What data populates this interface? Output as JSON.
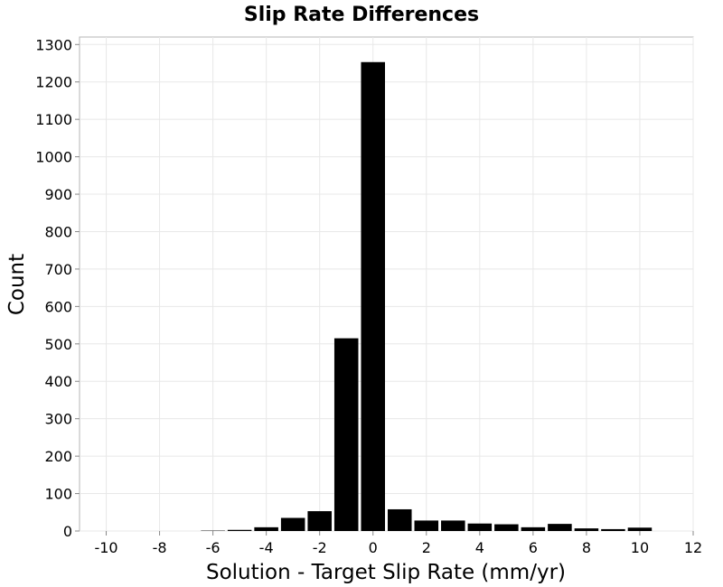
{
  "chart_data": {
    "type": "bar",
    "title": "Slip Rate Differences",
    "xlabel": "Solution - Target Slip Rate (mm/yr)",
    "ylabel": "Count",
    "xlim": [
      -11,
      12
    ],
    "ylim": [
      0,
      1320
    ],
    "xticks": [
      -10,
      -8,
      -6,
      -4,
      -2,
      0,
      2,
      4,
      6,
      8,
      10,
      12
    ],
    "yticks": [
      0,
      100,
      200,
      300,
      400,
      500,
      600,
      700,
      800,
      900,
      1000,
      1100,
      1200,
      1300
    ],
    "bin_width": 1,
    "grid": true,
    "legend": "none",
    "bar_color": "#000000",
    "x": [
      -10,
      -9,
      -8,
      -7,
      -6,
      -5,
      -4,
      -3,
      -2,
      -1,
      0,
      1,
      2,
      3,
      4,
      5,
      6,
      7,
      8,
      9,
      10
    ],
    "values": [
      0,
      0,
      0,
      0,
      1,
      3,
      10,
      35,
      53,
      515,
      1253,
      58,
      28,
      28,
      20,
      18,
      10,
      19,
      7,
      5,
      9
    ]
  }
}
